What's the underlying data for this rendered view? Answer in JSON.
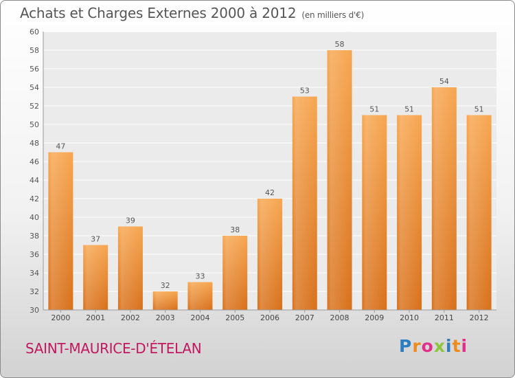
{
  "header": {
    "title": "Achats et Charges Externes 2000 à 2012",
    "subtitle": "(en milliers d'€)"
  },
  "footer": {
    "commune": "SAINT-MAURICE-D'ÉTELAN",
    "logo_letters": [
      "P",
      "r",
      "o",
      "x",
      "i",
      "t",
      "i"
    ],
    "logo_colors": [
      "#2c7cc0",
      "#f08a1c",
      "#e0308a",
      "#8cc63f",
      "#2c7cc0",
      "#f08a1c",
      "#e0308a"
    ]
  },
  "chart_data": {
    "type": "bar",
    "title": "Achats et Charges Externes 2000 à 2012",
    "subtitle": "(en milliers d'€)",
    "categories": [
      "2000",
      "2001",
      "2002",
      "2003",
      "2004",
      "2005",
      "2006",
      "2007",
      "2008",
      "2009",
      "2010",
      "2011",
      "2012"
    ],
    "values": [
      47,
      37,
      39,
      32,
      33,
      38,
      42,
      53,
      58,
      51,
      51,
      54,
      51
    ],
    "ylim": [
      30,
      60
    ],
    "yticks": [
      30,
      32,
      34,
      36,
      38,
      40,
      42,
      44,
      46,
      48,
      50,
      52,
      54,
      56,
      58,
      60
    ],
    "grid": true,
    "bar_color": "#f0922e",
    "xlabel": "",
    "ylabel": ""
  }
}
